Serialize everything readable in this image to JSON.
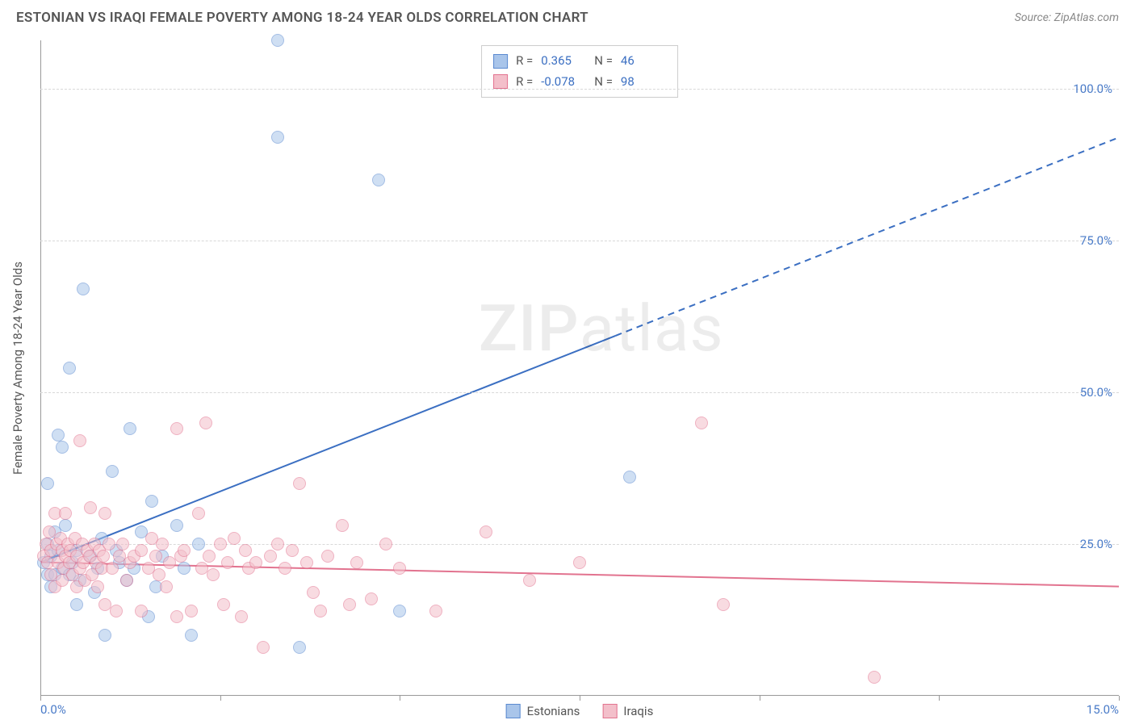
{
  "header": {
    "title": "ESTONIAN VS IRAQI FEMALE POVERTY AMONG 18-24 YEAR OLDS CORRELATION CHART",
    "source_prefix": "Source: ",
    "source": "ZipAtlas.com"
  },
  "chart": {
    "type": "scatter",
    "y_label": "Female Poverty Among 18-24 Year Olds",
    "xlim": [
      0,
      15
    ],
    "ylim": [
      0,
      108
    ],
    "x_ticks": [
      0,
      2.5,
      5,
      7.5,
      10,
      12.5,
      15
    ],
    "x_tick_labels": {
      "0": "0.0%",
      "15": "15.0%"
    },
    "y_ticks": [
      25,
      50,
      75,
      100
    ],
    "y_tick_labels": [
      "25.0%",
      "50.0%",
      "75.0%",
      "100.0%"
    ],
    "background_color": "#ffffff",
    "grid_color": "#d8d8d8",
    "axis_color": "#999999",
    "tick_label_color": "#4a7bc8",
    "marker_radius": 8,
    "marker_opacity": 0.55,
    "series": [
      {
        "name": "Estonians",
        "fill_color": "#a9c5ea",
        "stroke_color": "#5b8ad0",
        "r": 0.365,
        "n": 46,
        "trend": {
          "y_at_x0": 22,
          "y_at_xmax": 92,
          "solid_until_x": 8.0,
          "color": "#3b6fc2",
          "width": 2
        },
        "points": [
          [
            0.05,
            22
          ],
          [
            0.1,
            20
          ],
          [
            0.1,
            25
          ],
          [
            0.1,
            35
          ],
          [
            0.15,
            23
          ],
          [
            0.15,
            18
          ],
          [
            0.2,
            27
          ],
          [
            0.2,
            20
          ],
          [
            0.25,
            24
          ],
          [
            0.25,
            43
          ],
          [
            0.3,
            41
          ],
          [
            0.3,
            21
          ],
          [
            0.35,
            28
          ],
          [
            0.4,
            20
          ],
          [
            0.4,
            54
          ],
          [
            0.45,
            22
          ],
          [
            0.5,
            24
          ],
          [
            0.5,
            15
          ],
          [
            0.55,
            19
          ],
          [
            0.6,
            67
          ],
          [
            0.7,
            23
          ],
          [
            0.75,
            17
          ],
          [
            0.8,
            21
          ],
          [
            0.85,
            26
          ],
          [
            0.9,
            10
          ],
          [
            1.0,
            37
          ],
          [
            1.05,
            24
          ],
          [
            1.1,
            22
          ],
          [
            1.2,
            19
          ],
          [
            1.25,
            44
          ],
          [
            1.3,
            21
          ],
          [
            1.4,
            27
          ],
          [
            1.5,
            13
          ],
          [
            1.55,
            32
          ],
          [
            1.6,
            18
          ],
          [
            1.7,
            23
          ],
          [
            1.9,
            28
          ],
          [
            2.0,
            21
          ],
          [
            2.1,
            10
          ],
          [
            2.2,
            25
          ],
          [
            3.3,
            108
          ],
          [
            3.3,
            92
          ],
          [
            3.6,
            8
          ],
          [
            4.7,
            85
          ],
          [
            5.0,
            14
          ],
          [
            8.2,
            36
          ]
        ]
      },
      {
        "name": "Iraqis",
        "fill_color": "#f3bfca",
        "stroke_color": "#e2738f",
        "r": -0.078,
        "n": 98,
        "trend": {
          "y_at_x0": 22,
          "y_at_xmax": 18,
          "solid_until_x": 15,
          "color": "#e2738f",
          "width": 2
        },
        "points": [
          [
            0.05,
            23
          ],
          [
            0.08,
            25
          ],
          [
            0.1,
            22
          ],
          [
            0.12,
            27
          ],
          [
            0.15,
            24
          ],
          [
            0.15,
            20
          ],
          [
            0.2,
            30
          ],
          [
            0.2,
            18
          ],
          [
            0.22,
            25
          ],
          [
            0.25,
            22
          ],
          [
            0.28,
            26
          ],
          [
            0.3,
            24
          ],
          [
            0.3,
            19
          ],
          [
            0.32,
            21
          ],
          [
            0.35,
            23
          ],
          [
            0.35,
            30
          ],
          [
            0.38,
            25
          ],
          [
            0.4,
            22
          ],
          [
            0.42,
            24
          ],
          [
            0.45,
            20
          ],
          [
            0.48,
            26
          ],
          [
            0.5,
            23
          ],
          [
            0.5,
            18
          ],
          [
            0.55,
            42
          ],
          [
            0.55,
            21
          ],
          [
            0.58,
            25
          ],
          [
            0.6,
            22
          ],
          [
            0.62,
            19
          ],
          [
            0.65,
            24
          ],
          [
            0.68,
            23
          ],
          [
            0.7,
            31
          ],
          [
            0.72,
            20
          ],
          [
            0.75,
            25
          ],
          [
            0.78,
            22
          ],
          [
            0.8,
            18
          ],
          [
            0.82,
            24
          ],
          [
            0.85,
            21
          ],
          [
            0.88,
            23
          ],
          [
            0.9,
            30
          ],
          [
            0.9,
            15
          ],
          [
            0.95,
            25
          ],
          [
            1.0,
            21
          ],
          [
            1.05,
            14
          ],
          [
            1.1,
            23
          ],
          [
            1.15,
            25
          ],
          [
            1.2,
            19
          ],
          [
            1.25,
            22
          ],
          [
            1.3,
            23
          ],
          [
            1.4,
            24
          ],
          [
            1.4,
            14
          ],
          [
            1.5,
            21
          ],
          [
            1.55,
            26
          ],
          [
            1.6,
            23
          ],
          [
            1.65,
            20
          ],
          [
            1.7,
            25
          ],
          [
            1.75,
            18
          ],
          [
            1.8,
            22
          ],
          [
            1.9,
            44
          ],
          [
            1.9,
            13
          ],
          [
            1.95,
            23
          ],
          [
            2.0,
            24
          ],
          [
            2.1,
            14
          ],
          [
            2.2,
            30
          ],
          [
            2.25,
            21
          ],
          [
            2.3,
            45
          ],
          [
            2.35,
            23
          ],
          [
            2.4,
            20
          ],
          [
            2.5,
            25
          ],
          [
            2.55,
            15
          ],
          [
            2.6,
            22
          ],
          [
            2.7,
            26
          ],
          [
            2.8,
            13
          ],
          [
            2.85,
            24
          ],
          [
            2.9,
            21
          ],
          [
            3.0,
            22
          ],
          [
            3.1,
            8
          ],
          [
            3.2,
            23
          ],
          [
            3.3,
            25
          ],
          [
            3.4,
            21
          ],
          [
            3.5,
            24
          ],
          [
            3.6,
            35
          ],
          [
            3.7,
            22
          ],
          [
            3.8,
            17
          ],
          [
            3.9,
            14
          ],
          [
            4.0,
            23
          ],
          [
            4.2,
            28
          ],
          [
            4.3,
            15
          ],
          [
            4.4,
            22
          ],
          [
            4.6,
            16
          ],
          [
            4.8,
            25
          ],
          [
            5.0,
            21
          ],
          [
            5.5,
            14
          ],
          [
            6.2,
            27
          ],
          [
            6.8,
            19
          ],
          [
            7.5,
            22
          ],
          [
            9.2,
            45
          ],
          [
            9.5,
            15
          ],
          [
            11.6,
            3
          ]
        ]
      }
    ],
    "bottom_legend": [
      {
        "label": "Estonians",
        "fill": "#a9c5ea",
        "stroke": "#5b8ad0"
      },
      {
        "label": "Iraqis",
        "fill": "#f3bfca",
        "stroke": "#e2738f"
      }
    ],
    "legend_box": {
      "r_label": "R =",
      "n_label": "N ="
    },
    "watermark": {
      "part1": "ZIP",
      "part2": "atlas"
    }
  }
}
